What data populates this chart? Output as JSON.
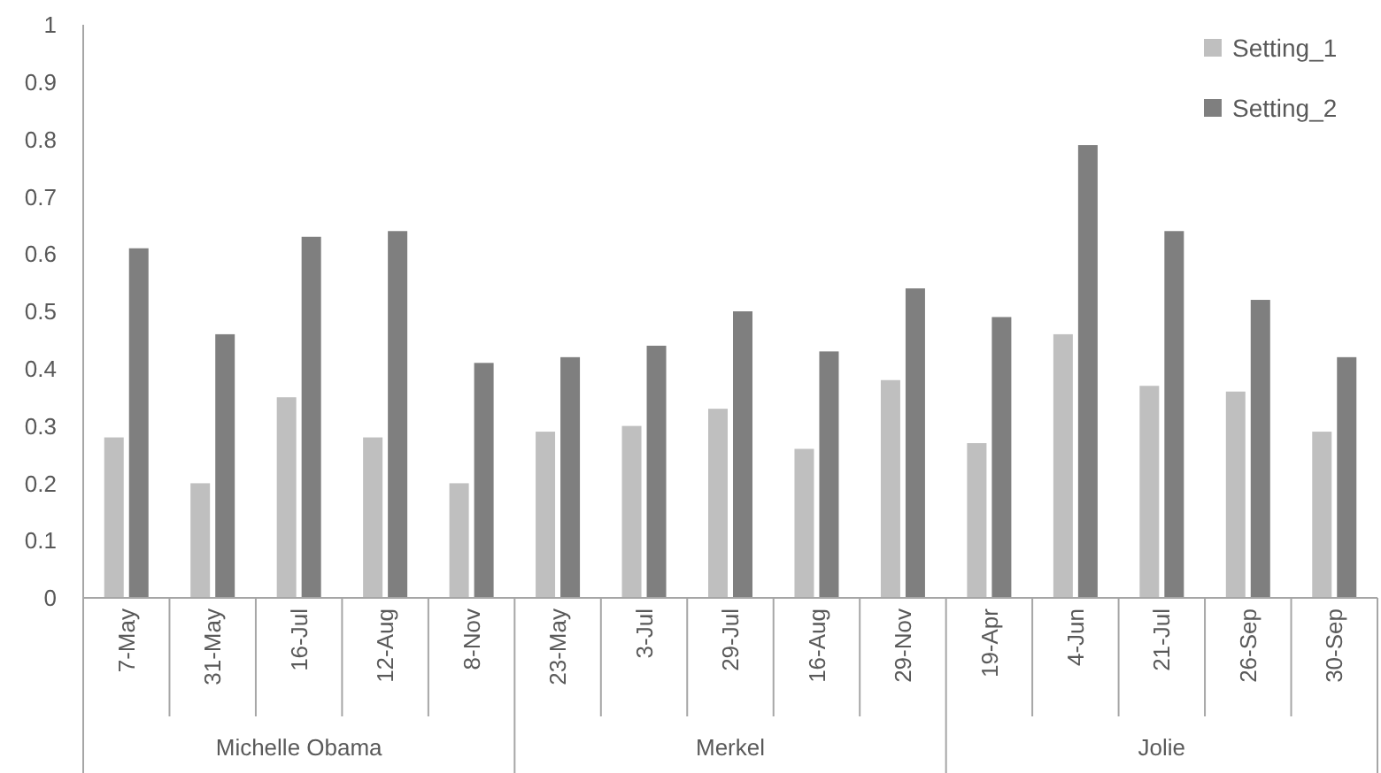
{
  "chart_data": {
    "type": "bar",
    "categories": [
      "7-May",
      "31-May",
      "16-Jul",
      "12-Aug",
      "8-Nov",
      "23-May",
      "3-Jul",
      "29-Jul",
      "16-Aug",
      "29-Nov",
      "19-Apr",
      "4-Jun",
      "21-Jul",
      "26-Sep",
      "30-Sep"
    ],
    "series": [
      {
        "name": "Setting_1",
        "color": "#bfbfbf",
        "values": [
          0.28,
          0.2,
          0.35,
          0.28,
          0.2,
          0.29,
          0.3,
          0.33,
          0.26,
          0.38,
          0.27,
          0.46,
          0.37,
          0.36,
          0.29
        ]
      },
      {
        "name": "Setting_2",
        "color": "#7f7f7f",
        "values": [
          0.61,
          0.46,
          0.63,
          0.64,
          0.41,
          0.42,
          0.44,
          0.5,
          0.43,
          0.54,
          0.49,
          0.79,
          0.64,
          0.52,
          0.42
        ]
      }
    ],
    "annotations": [
      "Michelle Obama",
      "Merkel",
      "Jolie"
    ],
    "ylim": [
      0,
      1
    ],
    "yticks": [
      0,
      0.1,
      0.2,
      0.3,
      0.4,
      0.5,
      0.6,
      0.7,
      0.8,
      0.9,
      1
    ],
    "grid": false,
    "legend": "top right"
  }
}
